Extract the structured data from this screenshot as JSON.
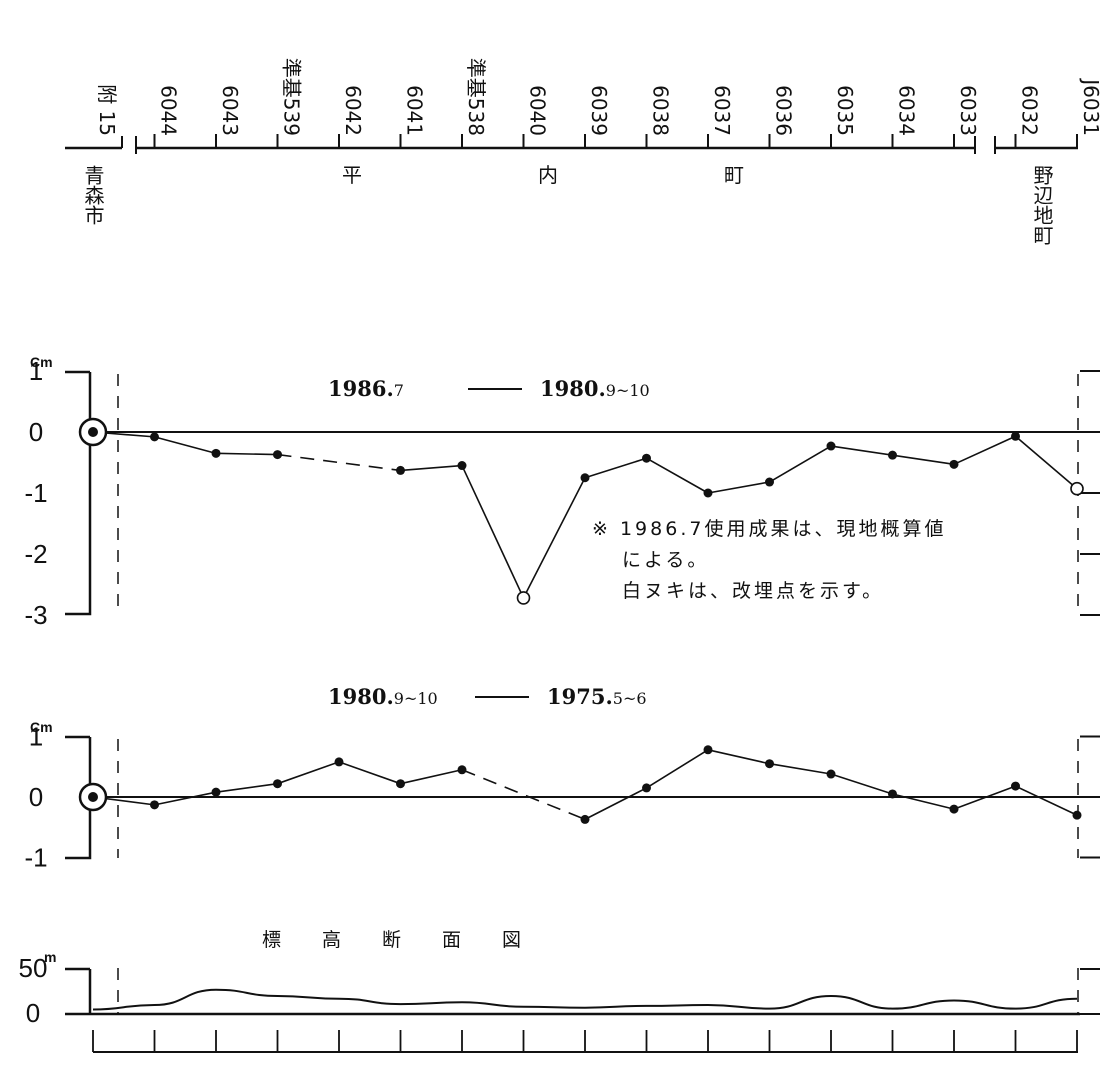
{
  "benchmarks": [
    "附 15",
    "6044",
    "6043",
    "準基539",
    "6042",
    "6041",
    "準基538",
    "6040",
    "6039",
    "6038",
    "6037",
    "6036",
    "6035",
    "6034",
    "6033",
    "6032",
    "J6031"
  ],
  "municipalities": {
    "aomori": "青森市",
    "hiranai": [
      "平",
      "内",
      "町"
    ],
    "noheji": "野辺地町"
  },
  "note": {
    "line1": "※ 1986.7使用成果は、現地概算値",
    "line2": "による。",
    "line3": "白ヌキは、改埋点を示す。"
  },
  "unit_cm": "cm",
  "unit_m": "m",
  "chart_data": [
    {
      "type": "line",
      "title": "",
      "legend": {
        "newer": "1986.",
        "newer_sub": "7",
        "dash": "——",
        "older": "1980.",
        "older_sub": "9~10"
      },
      "ylabel": "cm",
      "ylim": [
        -3,
        1
      ],
      "yticks": [
        "1",
        "0",
        "-1",
        "-2",
        "-3"
      ],
      "x": [
        0,
        1,
        2,
        3,
        4,
        5,
        6,
        7,
        8,
        9,
        10,
        11,
        12,
        13,
        14,
        15,
        16
      ],
      "values": [
        0,
        -0.08,
        -0.35,
        -0.37,
        null,
        -0.63,
        -0.55,
        -2.72,
        -0.75,
        -0.43,
        -1.0,
        -0.82,
        -0.23,
        -0.38,
        -0.53,
        -0.07,
        -0.93
      ],
      "dashed_segment": [
        3,
        5
      ],
      "reference_point_index": 0,
      "open_points": [
        7,
        16
      ]
    },
    {
      "type": "line",
      "title": "",
      "legend": {
        "newer": "1980.",
        "newer_sub": "9~10",
        "dash": "——",
        "older": "1975.",
        "older_sub": "5~6"
      },
      "ylabel": "cm",
      "ylim": [
        -1,
        1
      ],
      "yticks": [
        "1",
        "0",
        "-1"
      ],
      "x": [
        0,
        1,
        2,
        3,
        4,
        5,
        6,
        7,
        8,
        9,
        10,
        11,
        12,
        13,
        14,
        15,
        16
      ],
      "values": [
        0,
        -0.13,
        0.08,
        0.22,
        0.58,
        0.22,
        0.45,
        null,
        -0.37,
        0.15,
        0.78,
        0.55,
        0.38,
        0.05,
        -0.2,
        0.18,
        -0.3
      ],
      "dashed_segment": [
        6,
        8
      ],
      "reference_point_index": 0,
      "open_points": []
    },
    {
      "type": "area",
      "title": "標 高 断 面 図",
      "ylabel": "m",
      "ylim": [
        0,
        50
      ],
      "yticks": [
        "50",
        "0"
      ],
      "x": [
        0,
        1,
        2,
        3,
        4,
        5,
        6,
        7,
        8,
        9,
        10,
        11,
        12,
        13,
        14,
        15,
        16
      ],
      "values": [
        5,
        10,
        27,
        20,
        17,
        11,
        13,
        8,
        7,
        9,
        10,
        6,
        20,
        6,
        15,
        6,
        17
      ]
    }
  ]
}
